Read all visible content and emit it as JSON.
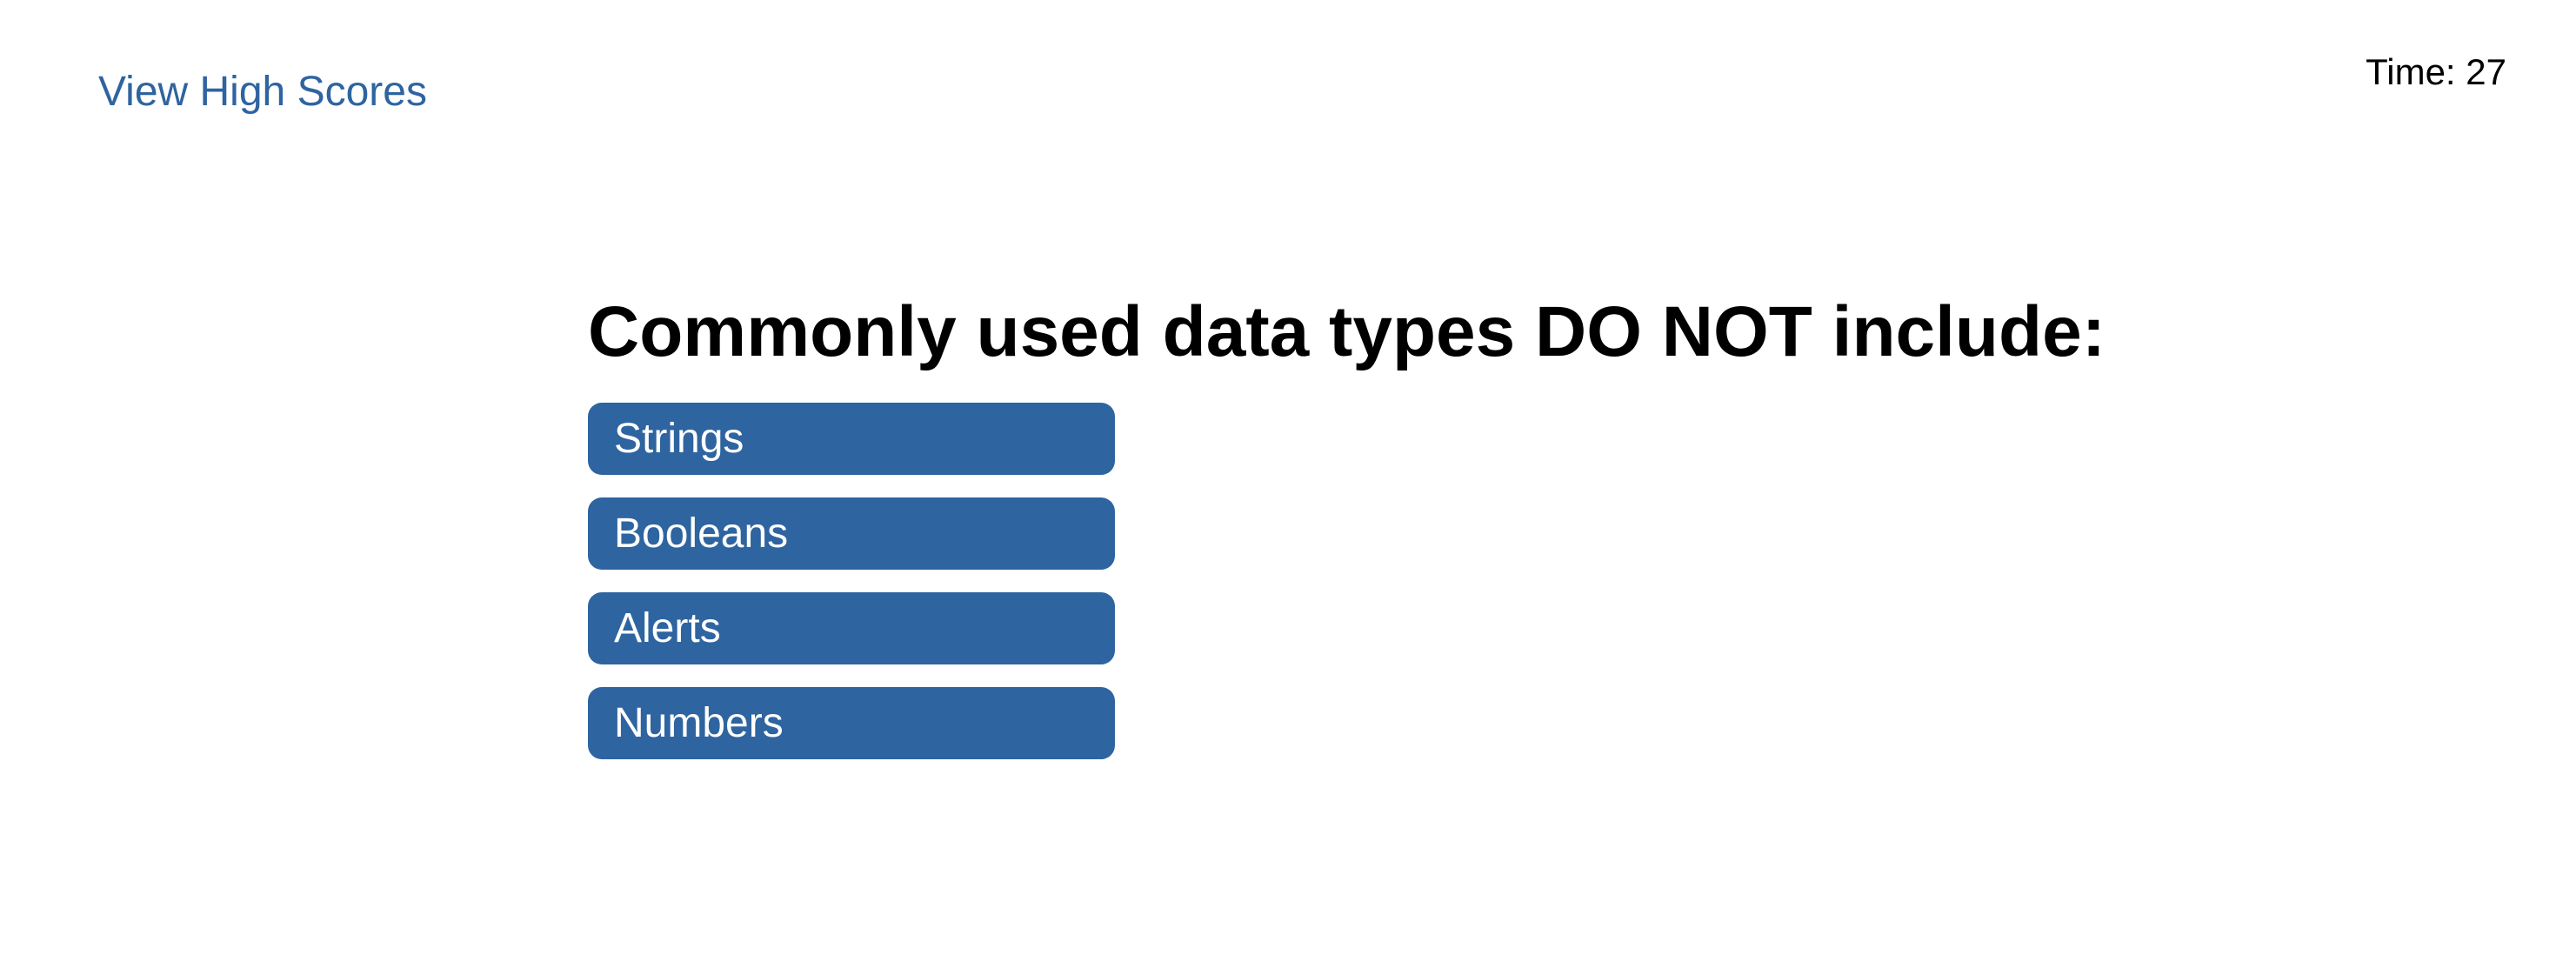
{
  "header": {
    "high_scores_link": "View High Scores",
    "timer": {
      "label": "Time: ",
      "value": "27"
    }
  },
  "quiz": {
    "question": "Commonly used data types DO NOT include:",
    "answers": [
      "Strings",
      "Booleans",
      "Alerts",
      "Numbers"
    ]
  },
  "colors": {
    "accent": "#2e64a0",
    "button_text": "#ffffff",
    "text": "#000000",
    "background": "#ffffff"
  }
}
